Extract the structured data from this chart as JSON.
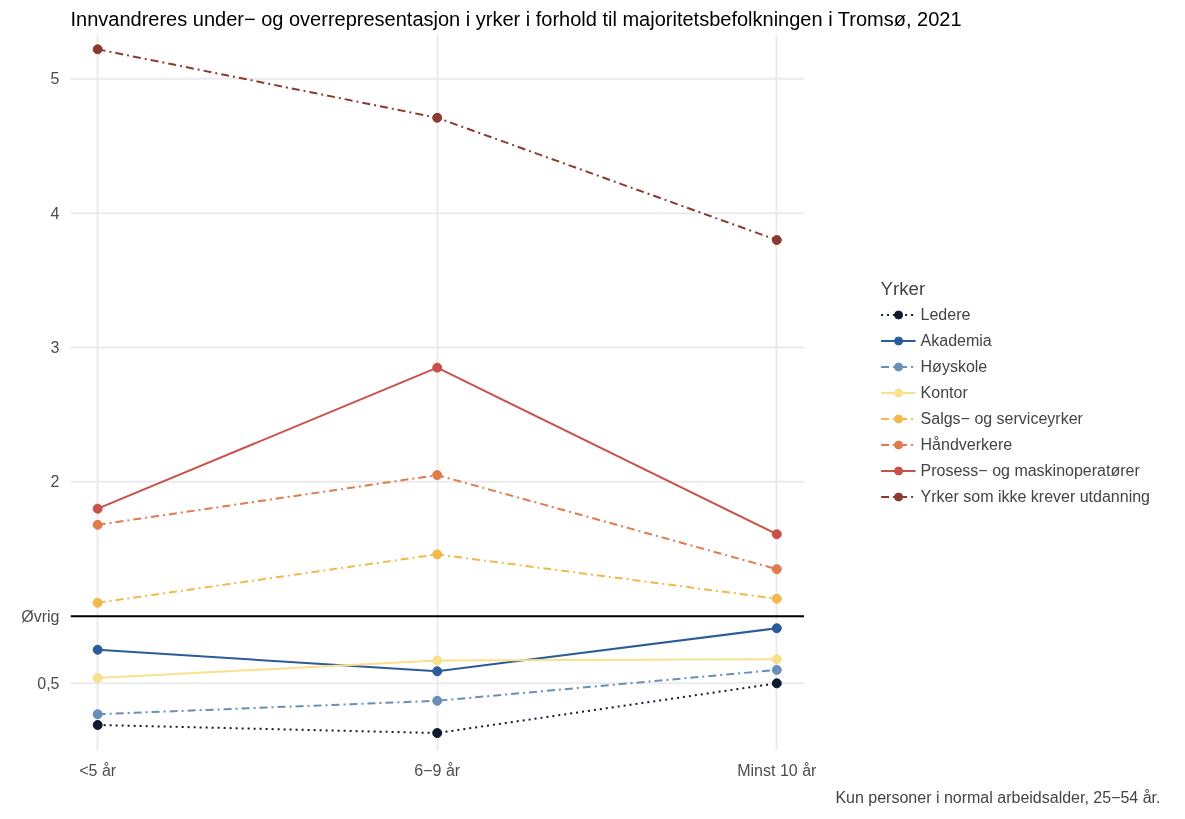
{
  "chart_data": {
    "type": "line",
    "title": "Innvandreres under− og overrepresentasjon i yrker i forhold til majoritetsbefolkningen i Tromsø, 2021",
    "categories": [
      "<5 år",
      "6−9 år",
      "Minst 10 år"
    ],
    "ylim": [
      0.0,
      5.33
    ],
    "yticks": [
      {
        "value": 0.5,
        "label": "0,5"
      },
      {
        "value": 1,
        "label": "Øvrig"
      },
      2,
      3,
      4,
      5
    ],
    "grid": true,
    "legend": "right",
    "legend_title": "Yrker",
    "marker": "circle",
    "ref_lines": [
      {
        "axis": "y",
        "value": 1,
        "color": "#000000"
      }
    ],
    "annotations": [
      "Kun personer i normal arbeidsalder, 25−54 år."
    ],
    "series": [
      {
        "name": "Ledere",
        "color": "#0f1a2e",
        "line_style": "dotted",
        "values": [
          0.19,
          0.13,
          0.5
        ]
      },
      {
        "name": "Akademia",
        "color": "#2a5b9b",
        "line_style": "solid",
        "values": [
          0.75,
          0.59,
          0.91
        ]
      },
      {
        "name": "Høyskole",
        "color": "#6a8fb7",
        "line_style": "dashdot",
        "values": [
          0.27,
          0.37,
          0.6
        ]
      },
      {
        "name": "Kontor",
        "color": "#f8e08e",
        "line_style": "solid",
        "values": [
          0.54,
          0.67,
          0.68
        ]
      },
      {
        "name": "Salgs− og serviceyrker",
        "color": "#f2b84b",
        "line_style": "dashdot",
        "values": [
          1.1,
          1.46,
          1.13
        ]
      },
      {
        "name": "Håndverkere",
        "color": "#e07b4c",
        "line_style": "dashdot",
        "values": [
          1.68,
          2.05,
          1.35
        ]
      },
      {
        "name": "Prosess− og maskinoperatører",
        "color": "#c8524a",
        "line_style": "solid",
        "values": [
          1.8,
          2.85,
          1.61
        ]
      },
      {
        "name": "Yrker som ikke krever utdanning",
        "color": "#8b3a32",
        "line_style": "dashdot",
        "values": [
          5.22,
          4.71,
          3.8
        ]
      }
    ]
  }
}
